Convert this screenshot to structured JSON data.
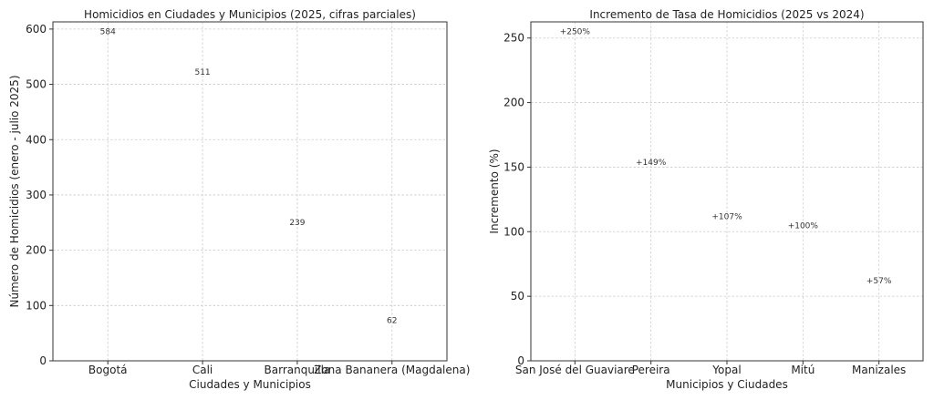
{
  "chart_data": [
    {
      "type": "bar",
      "title": "Homicidios en Ciudades y Municipios (2025, cifras parciales)",
      "xlabel": "Ciudades y Municipios",
      "ylabel": "Número de Homicidios (enero - julio 2025)",
      "categories": [
        "Bogotá",
        "Cali",
        "Barranquilla",
        "Zona Bananera (Magdalena)"
      ],
      "values": [
        584,
        511,
        239,
        62
      ],
      "data_labels": [
        "584",
        "511",
        "239",
        "62"
      ],
      "colors": [
        "#e3a000",
        "#e3a000",
        "#e3a000",
        "#ff0000"
      ],
      "ylim": [
        0,
        613
      ],
      "yticks": [
        0,
        100,
        200,
        300,
        400,
        500,
        600
      ],
      "grid": true
    },
    {
      "type": "bar",
      "title": "Incremento de Tasa de Homicidios (2025 vs 2024)",
      "xlabel": "Municipios y Ciudades",
      "ylabel": "Incremento (%)",
      "categories": [
        "San José del Guaviare",
        "Pereira",
        "Yopal",
        "Mitú",
        "Manizales"
      ],
      "values": [
        250,
        149,
        107,
        100,
        57
      ],
      "data_labels": [
        "+250%",
        "+149%",
        "+107%",
        "+100%",
        "+57%"
      ],
      "colors": [
        "#ffa500",
        "#ffa500",
        "#ffa500",
        "#ffa500",
        "#ffa500"
      ],
      "ylim": [
        0,
        262.5
      ],
      "yticks": [
        0,
        50,
        100,
        150,
        200,
        250
      ],
      "grid": true
    }
  ]
}
